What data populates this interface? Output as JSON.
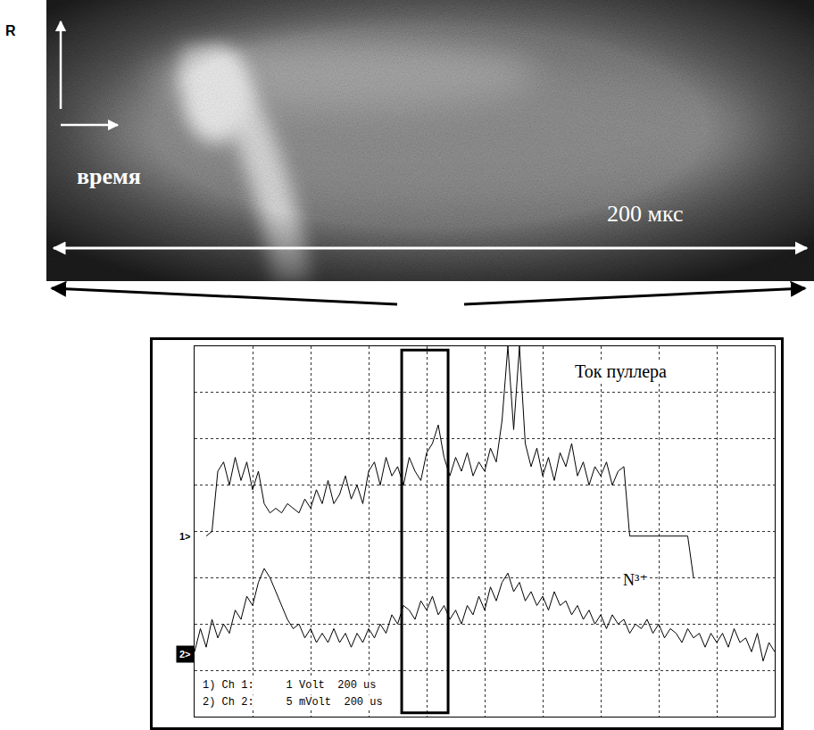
{
  "panel_label": "R",
  "photo": {
    "axis_label": "время",
    "duration_label": "200 мкс"
  },
  "chart_data": {
    "type": "line",
    "xlim": [
      0,
      10
    ],
    "ylim": [
      0,
      8
    ],
    "xticks": [
      0,
      1,
      2,
      3,
      4,
      5,
      6,
      7,
      8,
      9,
      10
    ],
    "yticks": [
      0,
      1,
      2,
      3,
      4,
      5,
      6,
      7,
      8
    ],
    "grid": true,
    "tick_labels": false,
    "x": [
      0,
      0.1,
      0.2,
      0.3,
      0.4,
      0.5,
      0.6,
      0.7,
      0.8,
      0.9,
      1,
      1.1,
      1.2,
      1.3,
      1.4,
      1.5,
      1.6,
      1.7,
      1.8,
      1.9,
      2,
      2.1,
      2.2,
      2.3,
      2.4,
      2.5,
      2.6,
      2.7,
      2.8,
      2.9,
      3,
      3.1,
      3.2,
      3.3,
      3.4,
      3.5,
      3.6,
      3.7,
      3.8,
      3.9,
      4,
      4.1,
      4.2,
      4.3,
      4.4,
      4.5,
      4.6,
      4.7,
      4.8,
      4.9,
      5,
      5.1,
      5.2,
      5.3,
      5.4,
      5.5,
      5.6,
      5.7,
      5.8,
      5.9,
      6,
      6.1,
      6.2,
      6.3,
      6.4,
      6.5,
      6.6,
      6.7,
      6.8,
      6.9,
      7,
      7.1,
      7.2,
      7.3,
      7.4,
      7.5,
      7.6,
      7.7,
      7.8,
      7.9,
      8,
      8.1,
      8.2,
      8.3,
      8.4,
      8.5,
      8.6,
      8.7,
      8.8,
      8.9,
      9,
      9.1,
      9.2,
      9.3,
      9.4,
      9.5,
      9.6,
      9.7,
      9.8,
      9.9,
      10
    ],
    "series": [
      {
        "name": "Ток пуллера",
        "color": "#000000",
        "values": [
          null,
          null,
          3.9,
          4.0,
          5.3,
          5.5,
          5.0,
          5.6,
          5.1,
          5.5,
          4.9,
          5.3,
          4.6,
          4.4,
          4.5,
          4.4,
          4.6,
          4.5,
          4.4,
          4.7,
          4.5,
          4.9,
          4.6,
          5.1,
          4.6,
          4.8,
          5.2,
          4.7,
          5.0,
          4.6,
          5.3,
          5.5,
          5.0,
          5.6,
          5.2,
          5.4,
          5.0,
          5.6,
          5.3,
          5.1,
          5.7,
          5.9,
          6.3,
          5.6,
          5.2,
          5.6,
          5.3,
          5.7,
          5.2,
          5.5,
          5.3,
          5.8,
          5.5,
          6.4,
          8.0,
          6.2,
          8.0,
          5.9,
          5.4,
          5.8,
          5.2,
          5.6,
          5.1,
          5.7,
          5.4,
          5.9,
          5.2,
          5.5,
          5.0,
          5.4,
          5.2,
          5.5,
          5.0,
          5.3,
          5.4,
          3.9,
          3.9,
          3.9,
          3.9,
          3.9,
          3.9,
          3.9,
          3.9,
          3.9,
          3.9,
          3.9,
          3.0,
          null,
          null,
          null,
          null,
          null,
          null,
          null,
          null,
          null,
          null,
          null,
          null,
          null,
          null
        ]
      },
      {
        "name": "N³⁺",
        "color": "#000000",
        "values": [
          1.4,
          1.9,
          1.5,
          2.1,
          1.7,
          2.0,
          1.8,
          2.3,
          2.1,
          2.6,
          2.4,
          2.9,
          3.2,
          3.0,
          2.7,
          2.4,
          2.1,
          1.9,
          2.0,
          1.7,
          1.9,
          1.6,
          1.8,
          1.6,
          1.9,
          1.6,
          1.8,
          1.5,
          1.8,
          1.6,
          1.9,
          1.7,
          2.0,
          1.8,
          2.2,
          2.0,
          2.4,
          2.3,
          2.1,
          2.5,
          2.3,
          2.6,
          2.2,
          2.4,
          2.1,
          2.3,
          2.0,
          2.4,
          2.2,
          2.6,
          2.3,
          2.8,
          2.5,
          2.9,
          3.1,
          2.7,
          2.9,
          2.5,
          2.7,
          2.4,
          2.6,
          2.3,
          2.7,
          2.4,
          2.5,
          2.2,
          2.4,
          2.1,
          2.3,
          2.0,
          2.2,
          1.9,
          2.2,
          2.0,
          2.1,
          1.8,
          2.0,
          1.9,
          2.1,
          1.8,
          2.0,
          1.7,
          1.9,
          1.8,
          1.6,
          1.9,
          1.7,
          1.8,
          1.5,
          1.8,
          1.6,
          1.8,
          1.5,
          1.9,
          1.6,
          1.7,
          1.4,
          1.8,
          1.2,
          1.6,
          1.4
        ]
      }
    ],
    "channel_markers": [
      {
        "label": "1>",
        "y": 3.9
      },
      {
        "label": "2>",
        "y": 1.35
      }
    ],
    "highlight": {
      "x": [
        3.57,
        4.37
      ]
    },
    "annotations": [
      "1) Ch 1:     1 Volt  200 us",
      "2) Ch 2:     5 mVolt  200 us"
    ]
  }
}
